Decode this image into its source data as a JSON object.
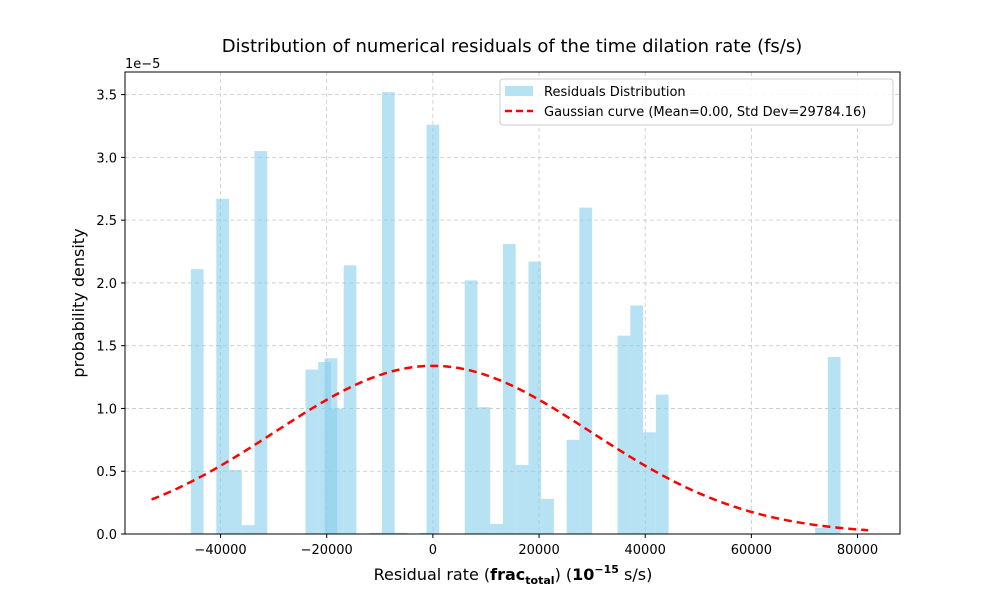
{
  "chart_data": {
    "type": "bar",
    "title": "Distribution of numerical residuals of the time dilation rate (fs/s)",
    "xlabel": {
      "prefix": "Residual rate (",
      "bold_main": "frac",
      "bold_sub": "total",
      "middle": ") (",
      "bold_base": "10",
      "bold_exp": "−15",
      "suffix": " s/s)"
    },
    "ylabel": "probability density",
    "y_multiplier_label": "1e−5",
    "xlim": [
      -58000,
      88000
    ],
    "ylim": [
      0,
      3.68
    ],
    "x_ticks": [
      -40000,
      -20000,
      0,
      20000,
      40000,
      60000,
      80000
    ],
    "x_tick_labels": [
      "−40000",
      "−20000",
      "0",
      "20000",
      "40000",
      "60000",
      "80000"
    ],
    "y_ticks": [
      0,
      0.5,
      1.0,
      1.5,
      2.0,
      2.5,
      3.0,
      3.5
    ],
    "y_tick_labels": [
      "0.0",
      "0.5",
      "1.0",
      "1.5",
      "2.0",
      "2.5",
      "3.0",
      "3.5"
    ],
    "grid": true,
    "legend_position": "top-right",
    "bin_width": 2400,
    "series": [
      {
        "name": "Residuals Distribution",
        "kind": "histogram",
        "color": "#87ceeb",
        "bins": [
          {
            "x": -45600,
            "y": 2.11
          },
          {
            "x": -40800,
            "y": 2.67
          },
          {
            "x": -38400,
            "y": 0.51
          },
          {
            "x": -36000,
            "y": 0.07
          },
          {
            "x": -33600,
            "y": 3.05
          },
          {
            "x": -24000,
            "y": 1.31
          },
          {
            "x": -21600,
            "y": 1.37
          },
          {
            "x": -20400,
            "y": 1.4
          },
          {
            "x": -19200,
            "y": 1.0
          },
          {
            "x": -16800,
            "y": 2.14
          },
          {
            "x": -12000,
            "y": 0.01
          },
          {
            "x": -9600,
            "y": 0.01
          },
          {
            "x": -7200,
            "y": 0.01
          },
          {
            "x": -9600,
            "y": 3.52
          },
          {
            "x": -2400,
            "y": 0.01
          },
          {
            "x": -1200,
            "y": 3.26
          },
          {
            "x": 6000,
            "y": 2.02
          },
          {
            "x": 8400,
            "y": 1.01
          },
          {
            "x": 10800,
            "y": 0.08
          },
          {
            "x": 13200,
            "y": 2.31
          },
          {
            "x": 15600,
            "y": 0.55
          },
          {
            "x": 18000,
            "y": 2.17
          },
          {
            "x": 20400,
            "y": 0.28
          },
          {
            "x": 25200,
            "y": 0.75
          },
          {
            "x": 27600,
            "y": 2.6
          },
          {
            "x": 34800,
            "y": 1.58
          },
          {
            "x": 37200,
            "y": 1.82
          },
          {
            "x": 39600,
            "y": 0.81
          },
          {
            "x": 42000,
            "y": 1.11
          },
          {
            "x": 74400,
            "y": 1.41
          },
          {
            "x": 72000,
            "y": 0.05
          }
        ]
      },
      {
        "name": "Gaussian curve (Mean=0.00, Std Dev=29784.16)",
        "kind": "line",
        "color": "#ff0000",
        "style": "dashed",
        "mean": 0,
        "std": 29784.16,
        "x_range": [
          -53000,
          82000
        ]
      }
    ]
  }
}
